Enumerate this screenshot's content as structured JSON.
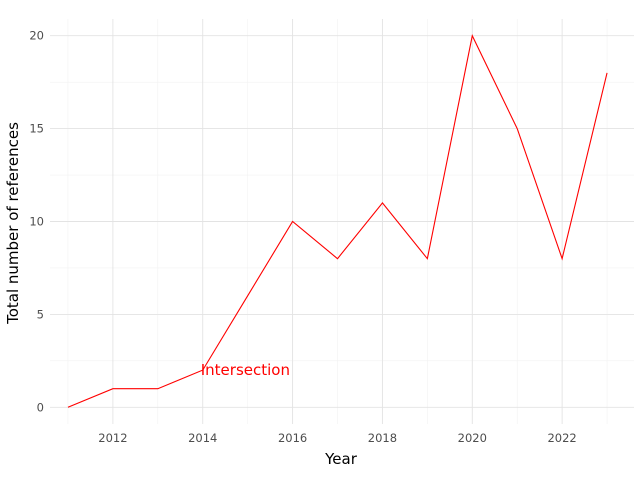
{
  "chart_data": {
    "type": "line",
    "title": "",
    "xlabel": "Year",
    "ylabel": "Total number of references",
    "x": [
      2011,
      2012,
      2013,
      2014,
      2015,
      2016,
      2017,
      2018,
      2019,
      2020,
      2021,
      2022,
      2023
    ],
    "series": [
      {
        "values": [
          0,
          1,
          1,
          2,
          6,
          10,
          8,
          11,
          8,
          20,
          15,
          8,
          18
        ],
        "color": "#ff0000"
      }
    ],
    "xlim": [
      2010.6,
      2023.6
    ],
    "ylim": [
      -0.9,
      20.9
    ],
    "xticks": [
      2012,
      2014,
      2016,
      2018,
      2020,
      2022
    ],
    "xtick_labels": [
      "2012",
      "2014",
      "2016",
      "2018",
      "2020",
      "2022"
    ],
    "yticks": [
      0,
      5,
      10,
      15,
      20
    ],
    "ytick_labels": [
      "0",
      "5",
      "10",
      "15",
      "20"
    ],
    "grid": true,
    "legend": "none",
    "annotations": [
      {
        "text": "Intersection",
        "x": 2014,
        "y": 2,
        "color": "#ff0000"
      }
    ]
  }
}
